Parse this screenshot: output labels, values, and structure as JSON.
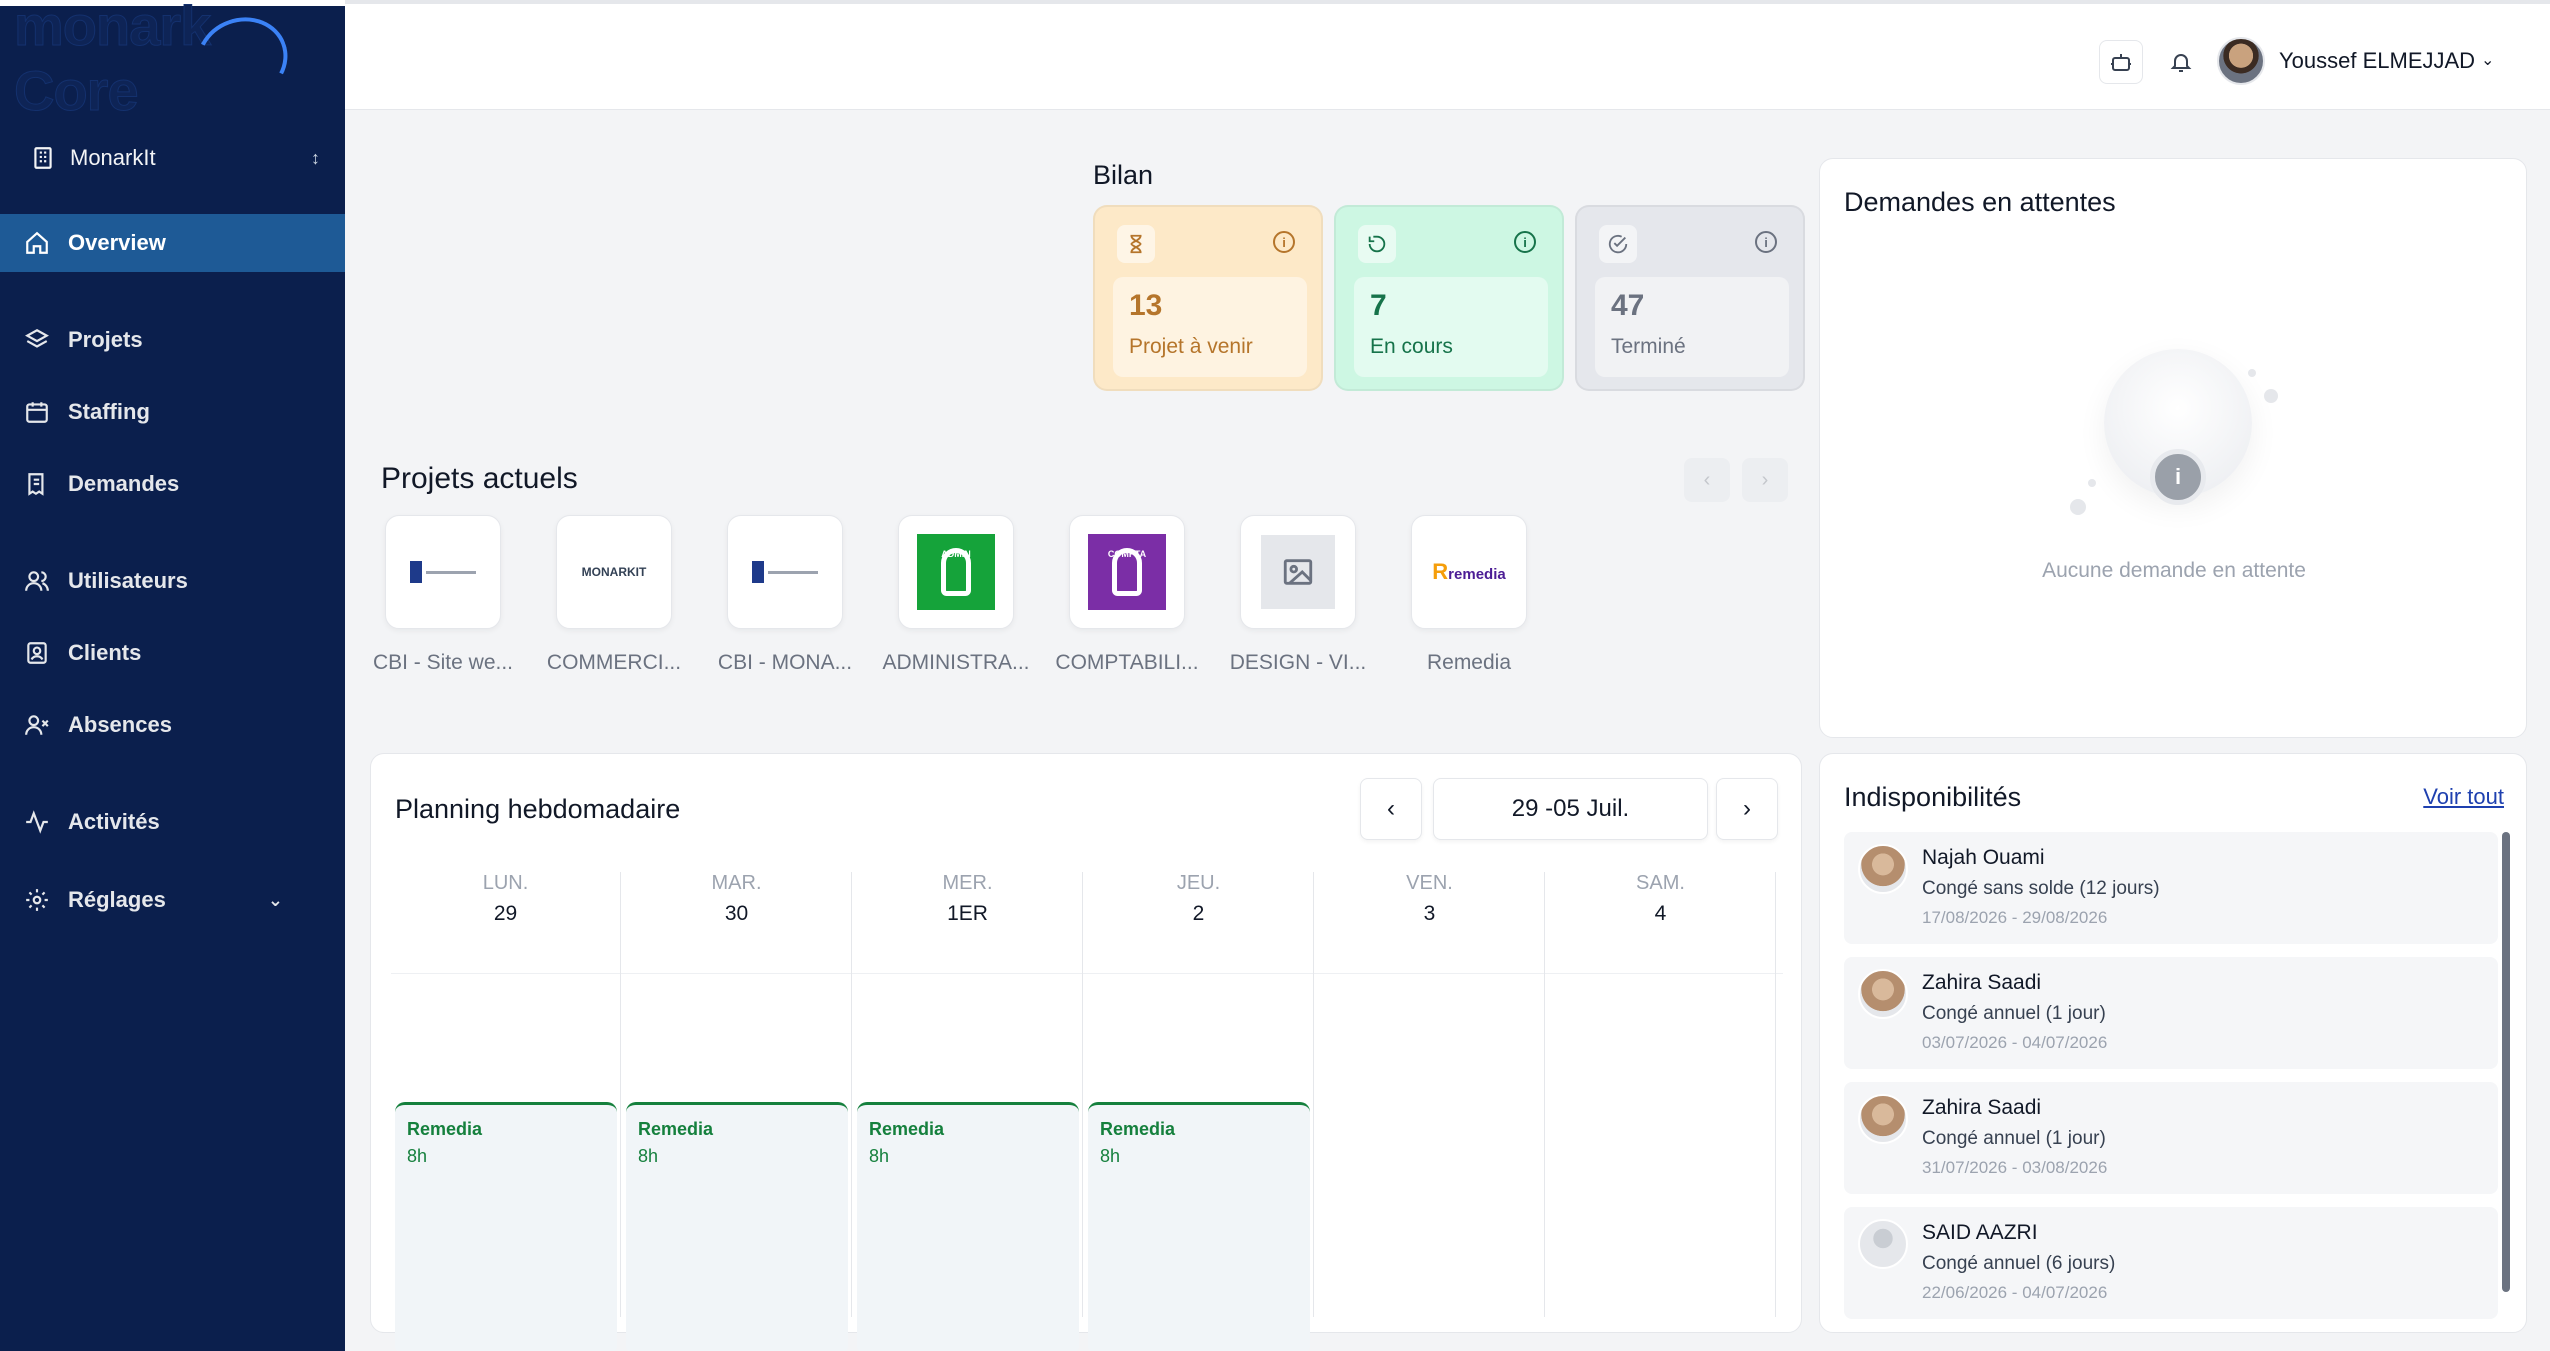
{
  "brand": {
    "logo_text": "monark Core"
  },
  "sidebar": {
    "org": {
      "label": "MonarkIt"
    },
    "items": [
      {
        "label": "Overview",
        "icon": "home-icon"
      },
      {
        "label": "Projets",
        "icon": "layers-icon"
      },
      {
        "label": "Staffing",
        "icon": "calendar-icon"
      },
      {
        "label": "Demandes",
        "icon": "receipt-icon"
      },
      {
        "label": "Utilisateurs",
        "icon": "users-icon"
      },
      {
        "label": "Clients",
        "icon": "contact-icon"
      },
      {
        "label": "Absences",
        "icon": "user-x-icon"
      },
      {
        "label": "Activités",
        "icon": "activity-icon"
      },
      {
        "label": "Réglages",
        "icon": "gear-icon"
      }
    ]
  },
  "header": {
    "user_name": "Youssef ELMEJJAD"
  },
  "bilan": {
    "title": "Bilan",
    "cards": [
      {
        "value": "13",
        "label": "Projet à venir",
        "color": "#b5752b",
        "bg": "#fde9c8"
      },
      {
        "value": "7",
        "label": "En cours",
        "color": "#16734a",
        "bg": "#cdf7e3"
      },
      {
        "value": "47",
        "label": "Terminé",
        "color": "#6b7280",
        "bg": "#e5e7ec"
      }
    ]
  },
  "projets": {
    "title": "Projets actuels",
    "items": [
      {
        "caption": "CBI - Site we..."
      },
      {
        "caption": "COMMERCI..."
      },
      {
        "caption": "CBI - MONA..."
      },
      {
        "caption": "ADMINISTRA...",
        "tile_text": "ADMIN"
      },
      {
        "caption": "COMPTABILI...",
        "tile_text": "COMPTA"
      },
      {
        "caption": "DESIGN - VI..."
      },
      {
        "caption": "Remedia",
        "tile_text": "remedia"
      }
    ],
    "logo_texts": {
      "monarkit": "MONARKIT"
    }
  },
  "demandes": {
    "title": "Demandes en attentes",
    "empty_text": "Aucune demande en attente"
  },
  "planning": {
    "title": "Planning hebdomadaire",
    "week_label": "29 -05 Juil.",
    "days": [
      {
        "name": "LUN.",
        "num": "29"
      },
      {
        "name": "MAR.",
        "num": "30"
      },
      {
        "name": "MER.",
        "num": "1ER"
      },
      {
        "name": "JEU.",
        "num": "2"
      },
      {
        "name": "VEN.",
        "num": "3"
      },
      {
        "name": "SAM.",
        "num": "4"
      }
    ],
    "events": [
      {
        "name": "Remedia",
        "hours": "8h"
      },
      {
        "name": "Remedia",
        "hours": "8h"
      },
      {
        "name": "Remedia",
        "hours": "8h"
      },
      {
        "name": "Remedia",
        "hours": "8h"
      }
    ]
  },
  "indispo": {
    "title": "Indisponibilités",
    "voir_tout": "Voir tout",
    "items": [
      {
        "name": "Najah Ouami",
        "type": "Congé sans solde (12 jours)",
        "dates": "17/08/2026 - 29/08/2026"
      },
      {
        "name": "Zahira Saadi",
        "type": "Congé annuel (1 jour)",
        "dates": "03/07/2026 - 04/07/2026"
      },
      {
        "name": "Zahira Saadi",
        "type": "Congé annuel (1 jour)",
        "dates": "31/07/2026 - 03/08/2026"
      },
      {
        "name": "SAID AAZRI",
        "type": "Congé annuel (6 jours)",
        "dates": "22/06/2026 - 04/07/2026"
      }
    ]
  }
}
